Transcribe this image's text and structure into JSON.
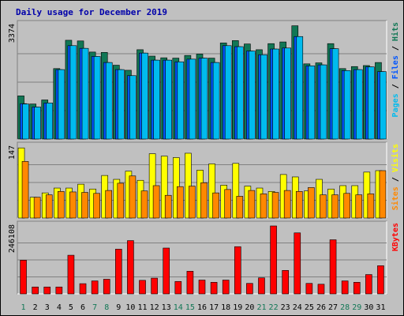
{
  "chart_data": {
    "type": "bar",
    "title": "Daily usage for December 2019",
    "days": [
      "1",
      "2",
      "3",
      "4",
      "5",
      "6",
      "7",
      "8",
      "9",
      "10",
      "11",
      "12",
      "13",
      "14",
      "15",
      "16",
      "17",
      "18",
      "19",
      "20",
      "21",
      "22",
      "23",
      "24",
      "25",
      "26",
      "27",
      "28",
      "29",
      "30",
      "31"
    ],
    "weekend_days": [
      1,
      7,
      8,
      14,
      15,
      21,
      22,
      28,
      29
    ],
    "panels": [
      {
        "max_label": "3374",
        "ymax": 3374,
        "right_label": [
          {
            "text": "Pages",
            "color": "#00bbee"
          },
          {
            "text": " / ",
            "color": "#000000"
          },
          {
            "text": "Files",
            "color": "#0055ff"
          },
          {
            "text": " / ",
            "color": "#000000"
          },
          {
            "text": "Hits",
            "color": "#117755"
          }
        ],
        "series": [
          {
            "name": "Hits",
            "color": "#117755",
            "values": [
              1280,
              1040,
              1160,
              2090,
              2930,
              2910,
              2580,
              2570,
              2190,
              2040,
              2650,
              2460,
              2410,
              2400,
              2480,
              2520,
              2400,
              2850,
              2920,
              2820,
              2650,
              2830,
              2880,
              3360,
              2230,
              2260,
              2830,
              2090,
              2150,
              2180,
              2270
            ]
          },
          {
            "name": "Files",
            "color": "#0055ff",
            "values": [
              1050,
              950,
              1070,
              2060,
              2770,
              2690,
              2450,
              2270,
              2060,
              1880,
              2550,
              2340,
              2340,
              2290,
              2370,
              2400,
              2270,
              2770,
              2740,
              2610,
              2500,
              2670,
              2700,
              3040,
              2170,
              2200,
              2680,
              2030,
              2060,
              2140,
              2000
            ]
          },
          {
            "name": "Pages",
            "color": "#00bbee",
            "values": [
              1040,
              950,
              1070,
              2060,
              2770,
              2690,
              2450,
              2270,
              2060,
              1880,
              2550,
              2340,
              2340,
              2290,
              2370,
              2400,
              2270,
              2770,
              2740,
              2610,
              2500,
              2670,
              2700,
              3040,
              2170,
              2200,
              2680,
              2030,
              2060,
              2140,
              2000
            ]
          }
        ]
      },
      {
        "max_label": "147",
        "ymax": 147,
        "right_label": [
          {
            "text": "Sites",
            "color": "#ff8800"
          },
          {
            "text": " / ",
            "color": "#000000"
          },
          {
            "text": "Visits",
            "color": "#ffff00"
          }
        ],
        "series": [
          {
            "name": "Visits",
            "color": "#ffff00",
            "values": [
              145,
              43,
              52,
              62,
              62,
              70,
              60,
              88,
              80,
              97,
              78,
              133,
              128,
              125,
              134,
              99,
              112,
              68,
              113,
              66,
              62,
              55,
              90,
              85,
              56,
              80,
              60,
              67,
              67,
              95,
              98
            ]
          },
          {
            "name": "Sites",
            "color": "#ff8800",
            "values": [
              117,
              43,
              48,
              55,
              54,
              53,
              51,
              57,
              72,
              87,
              56,
              67,
              47,
              65,
              66,
              73,
              52,
              59,
              45,
              57,
              50,
              53,
              57,
              55,
              63,
              48,
              48,
              51,
              48,
              50,
              98
            ]
          }
        ]
      },
      {
        "max_label": "246108",
        "ymax": 246108,
        "right_label": [
          {
            "text": "KBytes",
            "color": "#ff0000"
          }
        ],
        "series": [
          {
            "name": "KBytes",
            "color": "#ff0000",
            "values": [
              122000,
              25000,
              25000,
              25000,
              140000,
              37000,
              47000,
              53000,
              162000,
              193000,
              49000,
              57000,
              166000,
              45000,
              82000,
              50000,
              42000,
              50000,
              171000,
              38000,
              58000,
              246108,
              85000,
              221000,
              38000,
              35000,
              196000,
              47000,
              42000,
              70000,
              102000
            ]
          }
        ]
      }
    ]
  }
}
